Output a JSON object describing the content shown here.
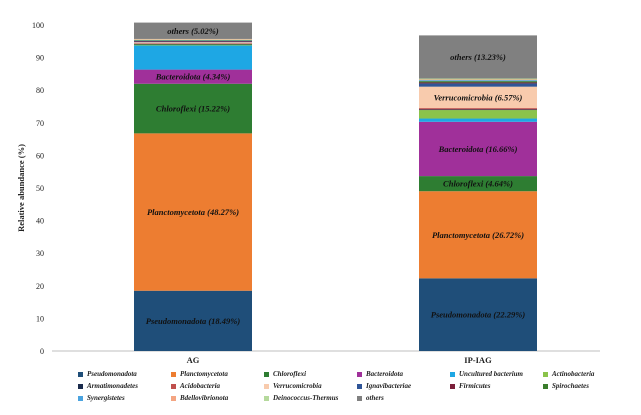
{
  "chart_data": {
    "type": "bar",
    "stacked": true,
    "title": "",
    "xlabel": "",
    "ylabel": "Relative abundance (%)",
    "ylim": [
      0,
      100
    ],
    "yticks": [
      0,
      10,
      20,
      30,
      40,
      50,
      60,
      70,
      80,
      90,
      100
    ],
    "grid": false,
    "legend_position": "bottom",
    "categories": [
      "AG",
      "IP-IAG"
    ],
    "series": [
      {
        "name": "Pseudomonadota",
        "color": "#1f4e79",
        "values": [
          18.49,
          22.29
        ],
        "labels": [
          "Pseudomonadota (18.49%)",
          "Pseudomonadota (22.29%)"
        ]
      },
      {
        "name": "Planctomycetota",
        "color": "#ed7d31",
        "values": [
          48.27,
          26.72
        ],
        "labels": [
          "Planctomycetota (48.27%)",
          "Planctomycetota (26.72%)"
        ]
      },
      {
        "name": "Chloroflexi",
        "color": "#2e7d32",
        "values": [
          15.22,
          4.64
        ],
        "labels": [
          "Chloroflexi (15.22%)",
          "Chloroflexi (4.64%)"
        ]
      },
      {
        "name": "Bacteroidota",
        "color": "#a0309a",
        "values": [
          4.34,
          16.66
        ],
        "labels": [
          "Bacteroidota (4.34%)",
          "Bacteroidota (16.66%)"
        ]
      },
      {
        "name": "Uncultured bacterium",
        "color": "#1ea7e4",
        "values": [
          7.4,
          1.0
        ],
        "labels": [
          "",
          ""
        ]
      },
      {
        "name": "Actinobacteria",
        "color": "#8bc34a",
        "values": [
          0.3,
          2.6
        ],
        "labels": [
          "",
          ""
        ]
      },
      {
        "name": "Armatimonadetes",
        "color": "#1a2b4c",
        "values": [
          0.2,
          0.2
        ],
        "labels": [
          "",
          ""
        ]
      },
      {
        "name": "Acidobacteria",
        "color": "#c0504d",
        "values": [
          0.2,
          0.4
        ],
        "labels": [
          "",
          ""
        ]
      },
      {
        "name": "Verrucomicrobia",
        "color": "#f8cbad",
        "values": [
          0.3,
          6.57
        ],
        "labels": [
          "",
          "Verrucomicrobia (6.57%)"
        ]
      },
      {
        "name": "Ignavibacteriae",
        "color": "#2f5597",
        "values": [
          0.2,
          1.0
        ],
        "labels": [
          "",
          ""
        ]
      },
      {
        "name": "Firmicutes",
        "color": "#7b1f3a",
        "values": [
          0.2,
          0.3
        ],
        "labels": [
          "",
          ""
        ]
      },
      {
        "name": "Spirochaetes",
        "color": "#3a7d2c",
        "values": [
          0.2,
          0.4
        ],
        "labels": [
          "",
          ""
        ]
      },
      {
        "name": "Synergistetes",
        "color": "#4aa3df",
        "values": [
          0.1,
          0.3
        ],
        "labels": [
          "",
          ""
        ]
      },
      {
        "name": "Bdellovibrionota",
        "color": "#f4a582",
        "values": [
          0.2,
          0.2
        ],
        "labels": [
          "",
          ""
        ]
      },
      {
        "name": "Deinococcus-Thermus",
        "color": "#b5d99c",
        "values": [
          0.1,
          0.3
        ],
        "labels": [
          "",
          ""
        ]
      },
      {
        "name": "others",
        "color": "#808080",
        "values": [
          5.02,
          13.23
        ],
        "labels": [
          "others (5.02%)",
          "others (13.23%)"
        ]
      }
    ]
  }
}
